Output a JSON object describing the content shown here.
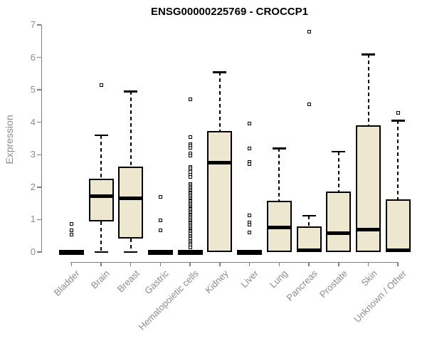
{
  "title": "ENSG00000225769 - CROCCP1",
  "colors": {
    "box_fill": "#eee7cf",
    "box_border": "#000000",
    "median": "#000000",
    "axis": "#7f7f7f",
    "tick_text": "#8c8c8c",
    "title_text": "#000000"
  },
  "chart_data": {
    "type": "boxplot",
    "title": "ENSG00000225769 - CROCCP1",
    "xlabel": "",
    "ylabel": "Expression",
    "ylim": [
      0,
      7
    ],
    "y_ticks": [
      0,
      1,
      2,
      3,
      4,
      5,
      6,
      7
    ],
    "grid": false,
    "categories": [
      "Bladder",
      "Brain",
      "Breast",
      "Gastric",
      "Hematopoietic cells",
      "Kidney",
      "Liver",
      "Lung",
      "Pancreas",
      "Prostate",
      "Skin",
      "Unknown / Other"
    ],
    "series": [
      {
        "name": "Bladder",
        "q1": 0,
        "median": 0,
        "q3": 0,
        "whisker_low": 0,
        "whisker_high": 0,
        "outliers": [
          0.53,
          0.68,
          0.86
        ]
      },
      {
        "name": "Brain",
        "q1": 0.95,
        "median": 1.72,
        "q3": 2.25,
        "whisker_low": 0,
        "whisker_high": 3.6,
        "outliers": [
          5.15
        ]
      },
      {
        "name": "Breast",
        "q1": 0.42,
        "median": 1.65,
        "q3": 2.63,
        "whisker_low": 0,
        "whisker_high": 4.95,
        "outliers": []
      },
      {
        "name": "Gastric",
        "q1": 0,
        "median": 0,
        "q3": 0,
        "whisker_low": 0,
        "whisker_high": 0,
        "outliers": [
          0.66,
          0.97,
          1.69
        ]
      },
      {
        "name": "Hematopoietic cells",
        "q1": 0,
        "median": 0,
        "q3": 0,
        "whisker_low": 0,
        "whisker_high": 0,
        "outliers": [
          4.7,
          3.55,
          3.33,
          3.28,
          3.22,
          3.03,
          2.97,
          2.63,
          2.58,
          2.52,
          2.46,
          2.38,
          2.32,
          2.1,
          2.05,
          2.0,
          1.96,
          1.92,
          1.88,
          1.84,
          1.8,
          1.76,
          1.72,
          1.68,
          1.64,
          1.6,
          1.56,
          1.52,
          1.48,
          1.44,
          1.4,
          1.36,
          1.32,
          1.28,
          1.24,
          1.2,
          1.16,
          1.12,
          1.08,
          1.04,
          1.0,
          0.96,
          0.92,
          0.88,
          0.84,
          0.8,
          0.76,
          0.72,
          0.68,
          0.64,
          0.6,
          0.55,
          0.5,
          0.45,
          0.4,
          0.35,
          0.3,
          0.25,
          0.2,
          0.15
        ]
      },
      {
        "name": "Kidney",
        "q1": 0,
        "median": 2.75,
        "q3": 3.74,
        "whisker_low": 0,
        "whisker_high": 5.55,
        "outliers": []
      },
      {
        "name": "Liver",
        "q1": 0,
        "median": 0,
        "q3": 0,
        "whisker_low": 0,
        "whisker_high": 0,
        "outliers": [
          3.95,
          3.2,
          2.78,
          2.72,
          1.12,
          0.9,
          0.84,
          0.6
        ]
      },
      {
        "name": "Lung",
        "q1": 0,
        "median": 0.76,
        "q3": 1.58,
        "whisker_low": 0,
        "whisker_high": 3.2,
        "outliers": []
      },
      {
        "name": "Pancreas",
        "q1": 0,
        "median": 0.05,
        "q3": 0.8,
        "whisker_low": 0,
        "whisker_high": 1.12,
        "outliers": [
          4.55,
          6.8
        ]
      },
      {
        "name": "Prostate",
        "q1": 0,
        "median": 0.58,
        "q3": 1.87,
        "whisker_low": 0,
        "whisker_high": 3.1,
        "outliers": []
      },
      {
        "name": "Skin",
        "q1": 0,
        "median": 0.7,
        "q3": 3.9,
        "whisker_low": 0,
        "whisker_high": 6.1,
        "outliers": []
      },
      {
        "name": "Unknown / Other",
        "q1": 0,
        "median": 0.05,
        "q3": 1.62,
        "whisker_low": 0,
        "whisker_high": 4.05,
        "outliers": [
          4.3
        ]
      }
    ]
  }
}
